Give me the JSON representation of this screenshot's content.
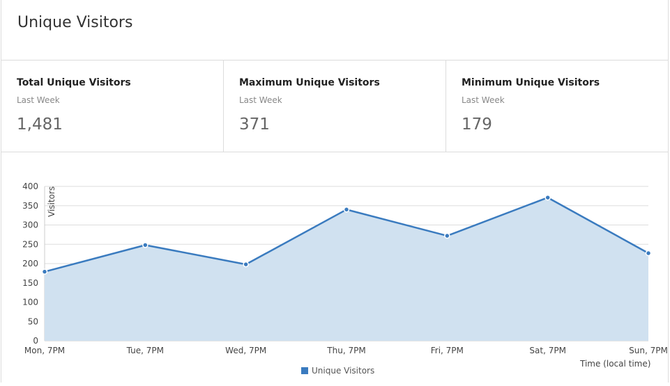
{
  "header": {
    "title": "Unique Visitors"
  },
  "stats": [
    {
      "label": "Total Unique Visitors",
      "sub": "Last Week",
      "value": "1,481"
    },
    {
      "label": "Maximum Unique Visitors",
      "sub": "Last Week",
      "value": "371"
    },
    {
      "label": "Minimum Unique Visitors",
      "sub": "Last Week",
      "value": "179"
    }
  ],
  "colors": {
    "line": "#3a7bbf",
    "fill": "#d0e1f0",
    "grid": "#dddddd"
  },
  "chart_data": {
    "type": "area",
    "categories": [
      "Mon, 7PM",
      "Tue, 7PM",
      "Wed, 7PM",
      "Thu, 7PM",
      "Fri, 7PM",
      "Sat, 7PM",
      "Sun, 7PM"
    ],
    "series": [
      {
        "name": "Unique Visitors",
        "values": [
          179,
          248,
          198,
          340,
          272,
          371,
          227
        ]
      }
    ],
    "ylabel": "Visitors",
    "xlabel": "Time (local time)",
    "ylim": [
      0,
      400
    ],
    "yticks": [
      0,
      50,
      100,
      150,
      200,
      250,
      300,
      350,
      400
    ],
    "grid": true,
    "legend": "bottom"
  }
}
